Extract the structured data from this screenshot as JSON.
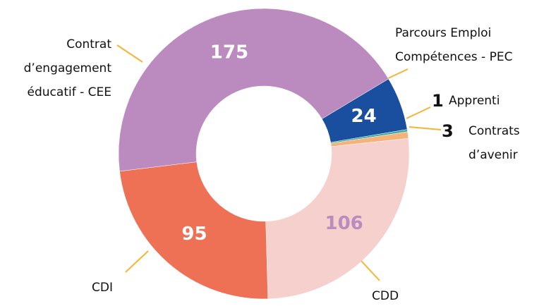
{
  "chart_data": {
    "type": "donut",
    "categories": [
      "Parcours Emploi\nCompétences - PEC",
      "Apprenti",
      "Contrats\nd’avenir",
      "CDD",
      "CDI",
      "Contrat\nd’engagement\néducatif - CEE"
    ],
    "values": [
      24,
      1,
      3,
      106,
      95,
      175
    ],
    "colors": [
      "#1a4fa0",
      "#3aa89e",
      "#f5b37a",
      "#f5d0cc",
      "#ef7155",
      "#bb8bbf"
    ],
    "leader_color": "#f5b533"
  }
}
